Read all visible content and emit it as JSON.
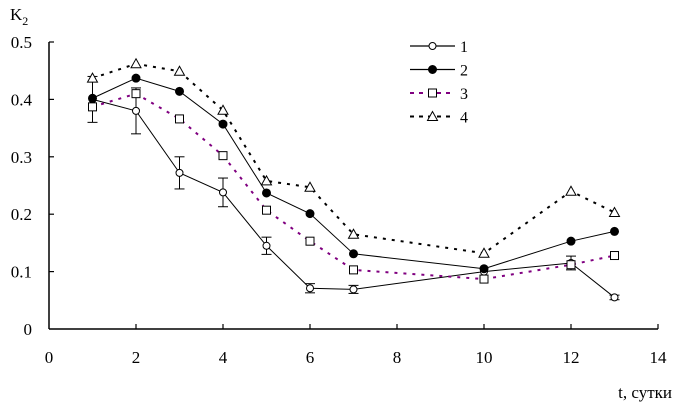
{
  "chart_data": {
    "type": "line",
    "title": "",
    "xlabel": "t, сутки",
    "ylabel": "K2",
    "ylabel_main": "K",
    "ylabel_sub": "2",
    "xlim": [
      0,
      14
    ],
    "ylim": [
      0,
      0.5
    ],
    "x_ticks": [
      0,
      2,
      4,
      6,
      8,
      10,
      12,
      14
    ],
    "x_tick_labels": [
      "0",
      "2",
      "4",
      "6",
      "8",
      "10",
      "12",
      "14"
    ],
    "y_ticks": [
      0,
      0.1,
      0.2,
      0.3,
      0.4,
      0.5
    ],
    "y_tick_labels": [
      "0",
      "0.1",
      "0.2",
      "0.3",
      "0.4",
      "0.5"
    ],
    "grid": false,
    "legend_position": "upper-center-right",
    "x": [
      1,
      2,
      3,
      4,
      5,
      6,
      7,
      10,
      12,
      13
    ],
    "series": [
      {
        "name": "1",
        "marker": "open-circle",
        "line": "solid",
        "color": "#000000",
        "values": [
          0.4,
          0.38,
          0.272,
          0.238,
          0.145,
          0.071,
          0.069,
          0.1,
          0.115,
          0.055
        ],
        "error": [
          0.04,
          0.04,
          0.028,
          0.025,
          0.015,
          0.008,
          0.007,
          0.0,
          0.012,
          0.004
        ]
      },
      {
        "name": "2",
        "marker": "filled-circle",
        "line": "solid",
        "color": "#000000",
        "values": [
          0.402,
          0.437,
          0.414,
          0.357,
          0.237,
          0.201,
          0.131,
          0.105,
          0.153,
          0.17
        ]
      },
      {
        "name": "3",
        "marker": "open-square",
        "line": "dotted",
        "color": "#800080",
        "values": [
          0.387,
          0.41,
          0.366,
          0.302,
          0.207,
          0.153,
          0.103,
          0.087,
          0.112,
          0.128
        ]
      },
      {
        "name": "4",
        "marker": "open-triangle",
        "line": "dotted",
        "color": "#000000",
        "values": [
          0.437,
          0.462,
          0.449,
          0.381,
          0.258,
          0.247,
          0.165,
          0.132,
          0.24,
          0.203
        ]
      }
    ]
  }
}
